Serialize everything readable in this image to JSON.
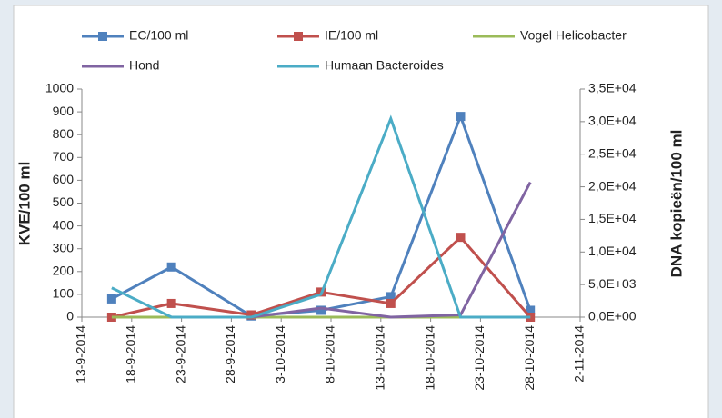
{
  "chart_data": {
    "type": "line",
    "x": [
      "2014-09-16",
      "2014-09-22",
      "2014-09-30",
      "2014-10-07",
      "2014-10-14",
      "2014-10-21",
      "2014-10-28"
    ],
    "series": [
      {
        "name": "EC/100 ml",
        "color": "#4f81bd",
        "marker": "square",
        "values": [
          80,
          220,
          5,
          30,
          90,
          880,
          30
        ]
      },
      {
        "name": "IE/100 ml",
        "color": "#c0504d",
        "marker": "square",
        "values": [
          0,
          60,
          10,
          110,
          60,
          350,
          0
        ]
      },
      {
        "name": "Vogel Helicobacter",
        "color": "#9bbb59",
        "axis": "y2",
        "values": [
          0,
          0,
          0,
          0,
          0,
          0,
          0
        ]
      },
      {
        "name": "Hond",
        "color": "#8064a2",
        "axis": "y2",
        "values": [
          null,
          0,
          0,
          1400,
          0,
          350,
          20700
        ]
      },
      {
        "name": "Humaan Bacteroides",
        "color": "#4bacc6",
        "axis": "y2",
        "values": [
          4500,
          0,
          0,
          3500,
          30450,
          0,
          0
        ]
      }
    ],
    "ylabel": "KVE/100 ml",
    "y2label": "DNA kopieën/100 ml",
    "ylim": [
      0,
      1000
    ],
    "yticks": [
      0,
      100,
      200,
      300,
      400,
      500,
      600,
      700,
      800,
      900,
      1000
    ],
    "y2lim": [
      0,
      35000
    ],
    "y2ticks": [
      {
        "value": 0,
        "label": "0,0E+00"
      },
      {
        "value": 5000,
        "label": "5,0E+03"
      },
      {
        "value": 10000,
        "label": "1,0E+04"
      },
      {
        "value": 15000,
        "label": "1,5E+04"
      },
      {
        "value": 20000,
        "label": "2,0E+04"
      },
      {
        "value": 25000,
        "label": "2,5E+04"
      },
      {
        "value": 30000,
        "label": "3,0E+04"
      },
      {
        "value": 35000,
        "label": "3,5E+04"
      }
    ],
    "xlim": [
      "2014-09-13",
      "2014-11-02"
    ],
    "xticks": [
      {
        "value": "2014-09-13",
        "label": "13-9-2014"
      },
      {
        "value": "2014-09-18",
        "label": "18-9-2014"
      },
      {
        "value": "2014-09-23",
        "label": "23-9-2014"
      },
      {
        "value": "2014-09-28",
        "label": "28-9-2014"
      },
      {
        "value": "2014-10-03",
        "label": "3-10-2014"
      },
      {
        "value": "2014-10-08",
        "label": "8-10-2014"
      },
      {
        "value": "2014-10-13",
        "label": "13-10-2014"
      },
      {
        "value": "2014-10-18",
        "label": "18-10-2014"
      },
      {
        "value": "2014-10-23",
        "label": "23-10-2014"
      },
      {
        "value": "2014-10-28",
        "label": "28-10-2014"
      },
      {
        "value": "2014-11-02",
        "label": "2-11-2014"
      }
    ],
    "grid": false
  }
}
